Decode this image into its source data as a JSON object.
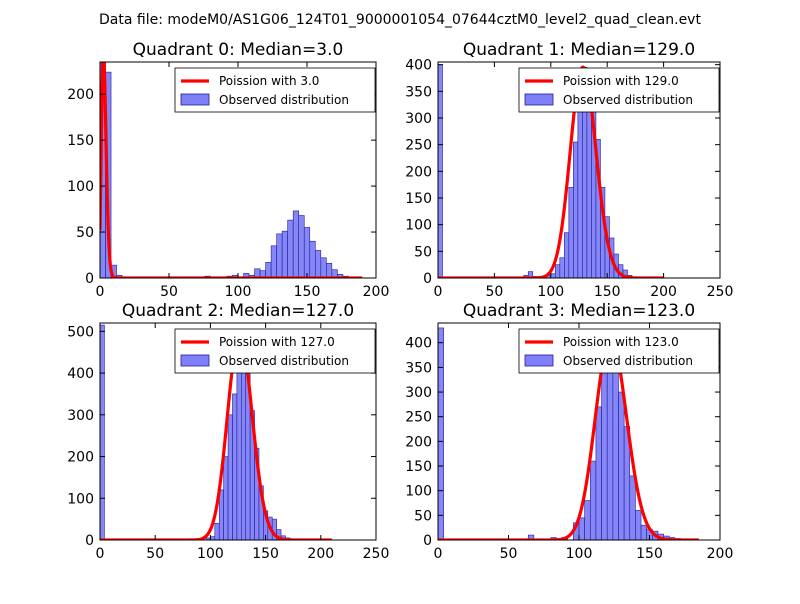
{
  "figure_title": "Data file: modeM0/AS1G06_124T01_9000001054_07644cztM0_level2_quad_clean.evt",
  "colors": {
    "bar_fill": "#7f7ff7",
    "bar_edge": "#1f1f9f",
    "poisson_line": "#ff0000",
    "axis": "#000000"
  },
  "legend": {
    "line_label_prefix": "Poission with ",
    "bar_label": "Observed distribution"
  },
  "chart_data": [
    {
      "type": "bar",
      "title": "Quadrant 0: Median=3.0",
      "poisson_label": "Poission with 3.0",
      "median": 3.0,
      "xlim": [
        0,
        200
      ],
      "ylim": [
        0,
        235
      ],
      "xticks": [
        0,
        50,
        100,
        150,
        200
      ],
      "yticks": [
        0,
        50,
        100,
        150,
        200
      ],
      "bin_width": 4,
      "bins": [
        {
          "x": 0,
          "y": 235
        },
        {
          "x": 4,
          "y": 224
        },
        {
          "x": 8,
          "y": 14
        },
        {
          "x": 12,
          "y": 3
        },
        {
          "x": 16,
          "y": 1
        },
        {
          "x": 20,
          "y": 1
        },
        {
          "x": 72,
          "y": 1
        },
        {
          "x": 76,
          "y": 2
        },
        {
          "x": 80,
          "y": 1
        },
        {
          "x": 84,
          "y": 1
        },
        {
          "x": 92,
          "y": 2
        },
        {
          "x": 96,
          "y": 3
        },
        {
          "x": 100,
          "y": 1
        },
        {
          "x": 104,
          "y": 5
        },
        {
          "x": 108,
          "y": 3
        },
        {
          "x": 112,
          "y": 10
        },
        {
          "x": 116,
          "y": 8
        },
        {
          "x": 120,
          "y": 17
        },
        {
          "x": 124,
          "y": 35
        },
        {
          "x": 128,
          "y": 48
        },
        {
          "x": 132,
          "y": 51
        },
        {
          "x": 136,
          "y": 63
        },
        {
          "x": 140,
          "y": 73
        },
        {
          "x": 144,
          "y": 68
        },
        {
          "x": 148,
          "y": 55
        },
        {
          "x": 152,
          "y": 40
        },
        {
          "x": 156,
          "y": 30
        },
        {
          "x": 160,
          "y": 22
        },
        {
          "x": 164,
          "y": 16
        },
        {
          "x": 168,
          "y": 9
        },
        {
          "x": 172,
          "y": 4
        },
        {
          "x": 176,
          "y": 2
        },
        {
          "x": 180,
          "y": 1
        },
        {
          "x": 184,
          "y": 1
        }
      ],
      "curve_xmax": 190
    },
    {
      "type": "bar",
      "title": "Quadrant 1: Median=129.0",
      "poisson_label": "Poission with 129.0",
      "median": 129.0,
      "xlim": [
        0,
        250
      ],
      "ylim": [
        0,
        405
      ],
      "xticks": [
        0,
        50,
        100,
        150,
        200,
        250
      ],
      "yticks": [
        0,
        50,
        100,
        150,
        200,
        250,
        300,
        350,
        400
      ],
      "bin_width": 4,
      "bins": [
        {
          "x": 0,
          "y": 400
        },
        {
          "x": 76,
          "y": 5
        },
        {
          "x": 80,
          "y": 12
        },
        {
          "x": 84,
          "y": 3
        },
        {
          "x": 92,
          "y": 2
        },
        {
          "x": 96,
          "y": 5
        },
        {
          "x": 100,
          "y": 8
        },
        {
          "x": 104,
          "y": 25
        },
        {
          "x": 108,
          "y": 38
        },
        {
          "x": 112,
          "y": 85
        },
        {
          "x": 116,
          "y": 170
        },
        {
          "x": 120,
          "y": 255
        },
        {
          "x": 124,
          "y": 370
        },
        {
          "x": 128,
          "y": 395
        },
        {
          "x": 132,
          "y": 355
        },
        {
          "x": 136,
          "y": 335
        },
        {
          "x": 140,
          "y": 260
        },
        {
          "x": 144,
          "y": 170
        },
        {
          "x": 148,
          "y": 115
        },
        {
          "x": 152,
          "y": 75
        },
        {
          "x": 156,
          "y": 45
        },
        {
          "x": 160,
          "y": 25
        },
        {
          "x": 164,
          "y": 15
        },
        {
          "x": 168,
          "y": 5
        },
        {
          "x": 172,
          "y": 2
        }
      ],
      "curve_xmax": 200
    },
    {
      "type": "bar",
      "title": "Quadrant 2: Median=127.0",
      "poisson_label": "Poission with 127.0",
      "median": 127.0,
      "xlim": [
        0,
        250
      ],
      "ylim": [
        0,
        520
      ],
      "xticks": [
        0,
        50,
        100,
        150,
        200,
        250
      ],
      "yticks": [
        0,
        100,
        200,
        300,
        400,
        500
      ],
      "bin_width": 4,
      "bins": [
        {
          "x": 0,
          "y": 515
        },
        {
          "x": 72,
          "y": 2
        },
        {
          "x": 80,
          "y": 3
        },
        {
          "x": 88,
          "y": 1
        },
        {
          "x": 96,
          "y": 5
        },
        {
          "x": 100,
          "y": 8
        },
        {
          "x": 104,
          "y": 40
        },
        {
          "x": 108,
          "y": 120
        },
        {
          "x": 112,
          "y": 200
        },
        {
          "x": 116,
          "y": 300
        },
        {
          "x": 120,
          "y": 350
        },
        {
          "x": 124,
          "y": 470
        },
        {
          "x": 128,
          "y": 490
        },
        {
          "x": 132,
          "y": 440
        },
        {
          "x": 136,
          "y": 310
        },
        {
          "x": 140,
          "y": 220
        },
        {
          "x": 144,
          "y": 130
        },
        {
          "x": 148,
          "y": 70
        },
        {
          "x": 152,
          "y": 55
        },
        {
          "x": 156,
          "y": 50
        },
        {
          "x": 160,
          "y": 25
        },
        {
          "x": 164,
          "y": 10
        },
        {
          "x": 168,
          "y": 5
        },
        {
          "x": 172,
          "y": 3
        }
      ],
      "curve_xmax": 210
    },
    {
      "type": "bar",
      "title": "Quadrant 3: Median=123.0",
      "poisson_label": "Poission with 123.0",
      "median": 123.0,
      "xlim": [
        0,
        200
      ],
      "ylim": [
        0,
        440
      ],
      "xticks": [
        0,
        50,
        100,
        150,
        200
      ],
      "yticks": [
        0,
        50,
        100,
        150,
        200,
        250,
        300,
        350,
        400
      ],
      "bin_width": 4,
      "bins": [
        {
          "x": 0,
          "y": 430
        },
        {
          "x": 64,
          "y": 10
        },
        {
          "x": 80,
          "y": 5
        },
        {
          "x": 88,
          "y": 5
        },
        {
          "x": 96,
          "y": 35
        },
        {
          "x": 100,
          "y": 45
        },
        {
          "x": 104,
          "y": 80
        },
        {
          "x": 108,
          "y": 160
        },
        {
          "x": 112,
          "y": 270
        },
        {
          "x": 116,
          "y": 370
        },
        {
          "x": 120,
          "y": 410
        },
        {
          "x": 124,
          "y": 400
        },
        {
          "x": 128,
          "y": 300
        },
        {
          "x": 132,
          "y": 230
        },
        {
          "x": 136,
          "y": 130
        },
        {
          "x": 140,
          "y": 60
        },
        {
          "x": 144,
          "y": 30
        },
        {
          "x": 148,
          "y": 22
        },
        {
          "x": 152,
          "y": 18
        },
        {
          "x": 156,
          "y": 12
        },
        {
          "x": 160,
          "y": 8
        },
        {
          "x": 164,
          "y": 5
        },
        {
          "x": 168,
          "y": 3
        },
        {
          "x": 172,
          "y": 2
        },
        {
          "x": 176,
          "y": 1
        }
      ],
      "curve_xmax": 185
    }
  ]
}
